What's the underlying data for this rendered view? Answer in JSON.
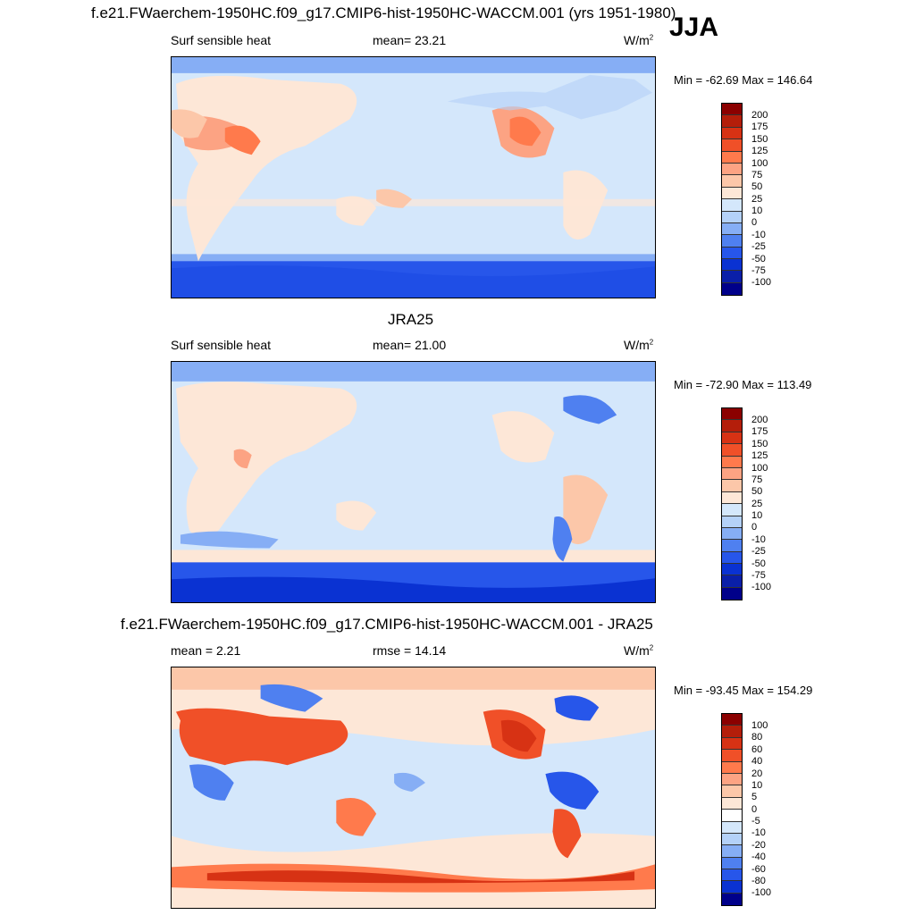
{
  "header": {
    "title": "f.e21.FWaerchem-1950HC.f09_g17.CMIP6-hist-1950HC-WACCM.001 (yrs 1951-1980)",
    "season": "JJA"
  },
  "panel1": {
    "left": "Surf sensible heat",
    "middle": "mean=  23.21",
    "unit_main": "W/m",
    "unit_sup": "2",
    "minmax": "Min = -62.69 Max = 146.64",
    "levels": [
      "200",
      "175",
      "150",
      "125",
      "100",
      "75",
      "50",
      "25",
      "10",
      "0",
      "-10",
      "-25",
      "-50",
      "-75",
      "-100"
    ]
  },
  "panel2": {
    "title": "JRA25",
    "left": "Surf sensible heat",
    "middle": "mean=  21.00",
    "unit_main": "W/m",
    "unit_sup": "2",
    "minmax": "Min = -72.90 Max = 113.49",
    "levels": [
      "200",
      "175",
      "150",
      "125",
      "100",
      "75",
      "50",
      "25",
      "10",
      "0",
      "-10",
      "-25",
      "-50",
      "-75",
      "-100"
    ]
  },
  "panel3": {
    "title": "f.e21.FWaerchem-1950HC.f09_g17.CMIP6-hist-1950HC-WACCM.001 - JRA25",
    "left": "mean =   2.21",
    "middle": "rmse =  14.14",
    "unit_main": "W/m",
    "unit_sup": "2",
    "minmax": "Min = -93.45 Max = 154.29",
    "levels": [
      "100",
      "80",
      "60",
      "40",
      "20",
      "10",
      "5",
      "0",
      "-5",
      "-10",
      "-20",
      "-40",
      "-60",
      "-80",
      "-100"
    ]
  },
  "colors": {
    "colorbar": [
      "#8b0000",
      "#b41e0a",
      "#d73214",
      "#f05028",
      "#ff7a4c",
      "#fca383",
      "#fcc7a9",
      "#fde7d7",
      "#d4e7fb",
      "#b4d1f8",
      "#86aef5",
      "#4f80f0",
      "#2756ea",
      "#0a32d2",
      "#0a1fa8",
      "#00008a"
    ]
  }
}
